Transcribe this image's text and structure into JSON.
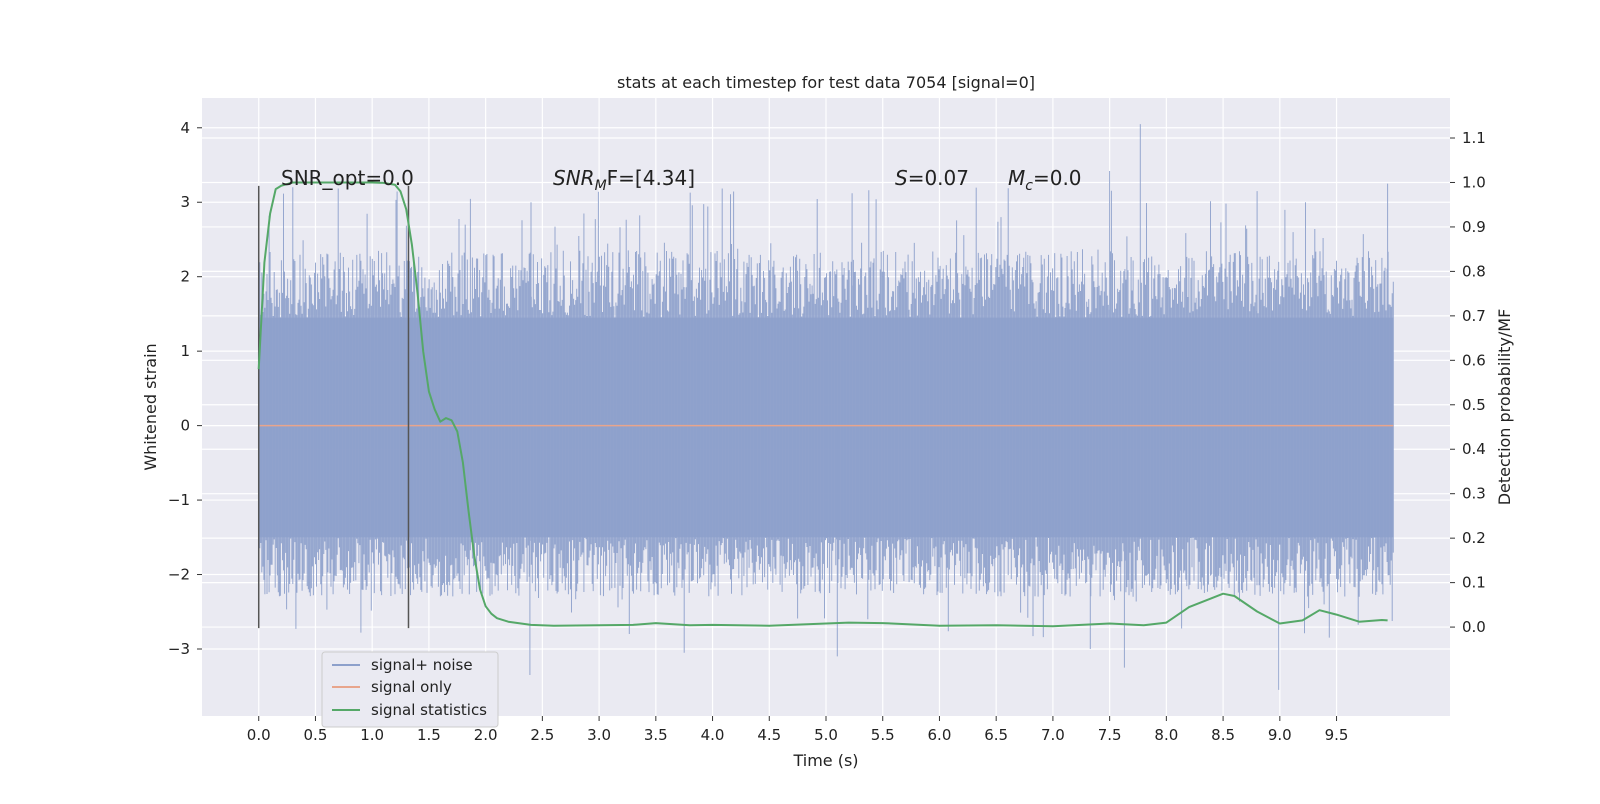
{
  "chart_data": {
    "type": "line",
    "title": "stats at each timestep for test data 7054 [signal=0]",
    "xlabel": "Time (s)",
    "ylabel_left": "Whitened strain",
    "ylabel_right": "Detection probability/MF",
    "xlim": [
      -0.5,
      10.5
    ],
    "ylim_left": [
      -3.9,
      4.4
    ],
    "ylim_right": [
      -0.2,
      1.19
    ],
    "x_ticks": [
      "0.0",
      "0.5",
      "1.0",
      "1.5",
      "2.0",
      "2.5",
      "3.0",
      "3.5",
      "4.0",
      "4.5",
      "5.0",
      "5.5",
      "6.0",
      "6.5",
      "7.0",
      "7.5",
      "8.0",
      "8.5",
      "9.0",
      "9.5"
    ],
    "y_ticks_left": [
      "4",
      "3",
      "2",
      "1",
      "0",
      "−1",
      "−2",
      "−3"
    ],
    "y_ticks_right": [
      "1.1",
      "1.0",
      "0.9",
      "0.8",
      "0.7",
      "0.6",
      "0.5",
      "0.4",
      "0.3",
      "0.2",
      "0.1",
      "0.0"
    ],
    "grid": true,
    "legend_position": "bottom-left",
    "annotations": {
      "snr_opt": "SNR_opt=0.0",
      "snr_mf_main": "SNR",
      "snr_mf_sub": "M",
      "snr_mf_tail": "F=[4.34]",
      "s_label": "S",
      "s_value": "=0.07",
      "mc_label": "M",
      "mc_sub": "c",
      "mc_value": "=0.0"
    },
    "vertical_markers": [
      0.0,
      1.32
    ],
    "series": [
      {
        "name": "signal+ noise",
        "color": "#8da0cb",
        "envelope": {
          "x_range": [
            0.0,
            10.0
          ],
          "typical_low": -1.5,
          "typical_high": 1.45,
          "peak_max": 4.05,
          "peak_min": -3.55
        }
      },
      {
        "name": "signal only",
        "color": "#e8a58c",
        "x": [
          0.0,
          10.0
        ],
        "y": [
          0.0,
          0.0
        ]
      },
      {
        "name": "signal statistics",
        "color": "#55a868",
        "axis": "right",
        "x": [
          0.0,
          0.05,
          0.1,
          0.15,
          0.2,
          0.3,
          0.5,
          0.8,
          1.0,
          1.1,
          1.2,
          1.25,
          1.3,
          1.35,
          1.4,
          1.45,
          1.5,
          1.55,
          1.6,
          1.65,
          1.7,
          1.75,
          1.8,
          1.85,
          1.9,
          1.95,
          2.0,
          2.05,
          2.1,
          2.2,
          2.4,
          2.6,
          3.0,
          3.3,
          3.5,
          3.8,
          4.0,
          4.5,
          5.0,
          5.2,
          5.5,
          6.0,
          6.5,
          7.0,
          7.5,
          7.8,
          8.0,
          8.2,
          8.4,
          8.5,
          8.6,
          8.8,
          9.0,
          9.2,
          9.35,
          9.5,
          9.7,
          9.9,
          9.95
        ],
        "y": [
          0.58,
          0.82,
          0.93,
          0.985,
          0.993,
          1.0,
          1.0,
          1.0,
          1.0,
          0.999,
          0.995,
          0.98,
          0.94,
          0.86,
          0.75,
          0.62,
          0.53,
          0.49,
          0.462,
          0.47,
          0.465,
          0.44,
          0.37,
          0.26,
          0.16,
          0.085,
          0.047,
          0.03,
          0.02,
          0.012,
          0.005,
          0.003,
          0.004,
          0.005,
          0.009,
          0.004,
          0.005,
          0.003,
          0.008,
          0.01,
          0.009,
          0.003,
          0.004,
          0.002,
          0.008,
          0.004,
          0.01,
          0.045,
          0.065,
          0.075,
          0.07,
          0.035,
          0.008,
          0.015,
          0.038,
          0.028,
          0.012,
          0.016,
          0.015
        ]
      }
    ]
  }
}
